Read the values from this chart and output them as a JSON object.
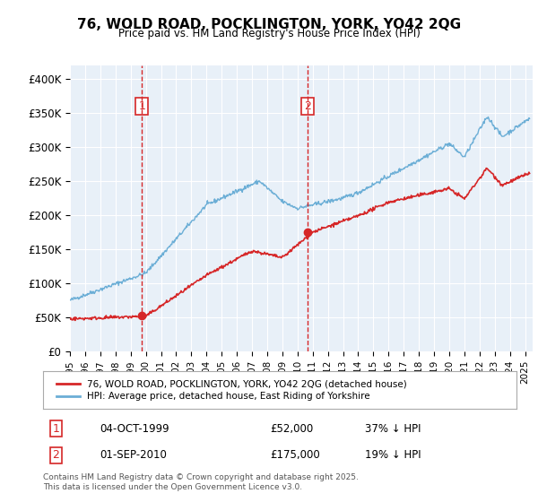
{
  "title": "76, WOLD ROAD, POCKLINGTON, YORK, YO42 2QG",
  "subtitle": "Price paid vs. HM Land Registry's House Price Index (HPI)",
  "ylabel_ticks": [
    "£0",
    "£50K",
    "£100K",
    "£150K",
    "£200K",
    "£250K",
    "£300K",
    "£350K",
    "£400K"
  ],
  "ytick_vals": [
    0,
    50000,
    100000,
    150000,
    200000,
    250000,
    300000,
    350000,
    400000
  ],
  "ylim": [
    0,
    420000
  ],
  "xlim_start": 1995.0,
  "xlim_end": 2025.5,
  "hpi_color": "#6baed6",
  "price_color": "#d62728",
  "dashed_color": "#d62728",
  "legend_label_price": "76, WOLD ROAD, POCKLINGTON, YORK, YO42 2QG (detached house)",
  "legend_label_hpi": "HPI: Average price, detached house, East Riding of Yorkshire",
  "transaction1_date": "04-OCT-1999",
  "transaction1_price": "£52,000",
  "transaction1_hpi": "37% ↓ HPI",
  "transaction2_date": "01-SEP-2010",
  "transaction2_price": "£175,000",
  "transaction2_hpi": "19% ↓ HPI",
  "footer": "Contains HM Land Registry data © Crown copyright and database right 2025.\nThis data is licensed under the Open Government Licence v3.0.",
  "bg_color": "#ffffff",
  "plot_bg_color": "#e8f0f8",
  "grid_color": "#ffffff",
  "transaction1_year": 1999.75,
  "transaction2_year": 2010.67
}
